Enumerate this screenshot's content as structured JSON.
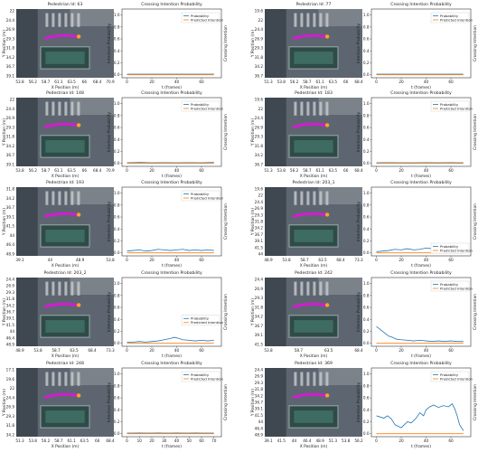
{
  "panels": [
    {
      "map_title": "Pedestrian Id: 63",
      "map_x_ticks": [
        "53.8",
        "56.2",
        "58.7",
        "61.1",
        "63.5",
        "66",
        "68.4",
        "70.9"
      ],
      "map_y_ticks": [
        "22",
        "24.4",
        "26.9",
        "29.3",
        "31.8",
        "34.2",
        "36.7",
        "39.1"
      ],
      "map_xlabel": "X Position (m)",
      "map_ylabel": "Y Position (m)",
      "chart_data": {
        "type": "line",
        "title": "Crossing Intention Probability",
        "xlabel": "t (frames)",
        "ylabel": "Intention Probability",
        "y2label": "Crossing Intention",
        "xlim": [
          -4,
          76
        ],
        "ylim": [
          -0.05,
          1.1
        ],
        "x_ticks": [
          0,
          20,
          40,
          60
        ],
        "y_ticks": [
          0.0,
          0.2,
          0.4,
          0.6,
          0.8,
          1.0
        ],
        "legend": "top-right",
        "series": [
          {
            "name": "Probability",
            "color": "#1f77b4",
            "x": [
              0,
              70
            ],
            "y": [
              0.01,
              0.01
            ]
          },
          {
            "name": "Predicted Intention",
            "color": "#ff7f0e",
            "x": [
              0,
              70
            ],
            "y": [
              0,
              0
            ]
          }
        ]
      }
    },
    {
      "map_title": "Pedestrian Id: 77",
      "map_x_ticks": [
        "51.3",
        "53.8",
        "56.2",
        "58.7",
        "61.1",
        "63.5",
        "66",
        "68.4"
      ],
      "map_y_ticks": [
        "19.6",
        "22",
        "24.4",
        "26.9",
        "29.3",
        "31.8",
        "34.2",
        "36.7"
      ],
      "map_xlabel": "X Position (m)",
      "map_ylabel": "Y Position (m)",
      "chart_data": {
        "type": "line",
        "title": "Crossing Intention Probability",
        "xlabel": "t (frames)",
        "ylabel": "Intention Probability",
        "y2label": "Crossing Intention",
        "xlim": [
          -4,
          76
        ],
        "ylim": [
          -0.05,
          1.1
        ],
        "x_ticks": [
          0,
          20,
          40,
          60
        ],
        "y_ticks": [
          0.0,
          0.2,
          0.4,
          0.6,
          0.8,
          1.0
        ],
        "legend": "top-right",
        "series": [
          {
            "name": "Probability",
            "color": "#1f77b4",
            "x": [
              0,
              70
            ],
            "y": [
              0.01,
              0.01
            ]
          },
          {
            "name": "Predicted Intention",
            "color": "#ff7f0e",
            "x": [
              0,
              70
            ],
            "y": [
              0,
              0
            ]
          }
        ]
      }
    },
    {
      "map_title": "Pedestrian Id: 148",
      "map_x_ticks": [
        "53.8",
        "56.2",
        "58.7",
        "61.1",
        "63.5",
        "66",
        "68.4",
        "70.9"
      ],
      "map_y_ticks": [
        "22",
        "24.4",
        "26.9",
        "29.3",
        "31.8",
        "34.2",
        "36.7",
        "39.1"
      ],
      "map_xlabel": "X Position (m)",
      "map_ylabel": "Y Position (m)",
      "chart_data": {
        "type": "line",
        "title": "Crossing Intention Probability",
        "xlabel": "t (frames)",
        "ylabel": "Intention Probability",
        "y2label": "Crossing Intention",
        "xlim": [
          -4,
          76
        ],
        "ylim": [
          -0.05,
          1.1
        ],
        "x_ticks": [
          0,
          20,
          40,
          60
        ],
        "y_ticks": [
          0.0,
          0.2,
          0.4,
          0.6,
          0.8,
          1.0
        ],
        "legend": "top-right",
        "series": [
          {
            "name": "Probability",
            "color": "#1f77b4",
            "x": [
              0,
              10,
              20,
              30,
              40,
              50,
              60,
              70
            ],
            "y": [
              0.01,
              0.015,
              0.01,
              0.012,
              0.01,
              0.012,
              0.01,
              0.015
            ]
          },
          {
            "name": "Predicted Intention",
            "color": "#ff7f0e",
            "x": [
              0,
              70
            ],
            "y": [
              0,
              0
            ]
          }
        ]
      }
    },
    {
      "map_title": "Pedestrian Id: 183",
      "map_x_ticks": [
        "51.3",
        "53.8",
        "56.2",
        "58.7",
        "61.1",
        "63.5",
        "66",
        "68.4"
      ],
      "map_y_ticks": [
        "19.6",
        "22",
        "24.4",
        "26.9",
        "29.3",
        "31.8",
        "34.2",
        "36.7"
      ],
      "map_xlabel": "X Position (m)",
      "map_ylabel": "Y Position (m)",
      "chart_data": {
        "type": "line",
        "title": "Crossing Intention Probability",
        "xlabel": "t (frames)",
        "ylabel": "Intention Probability",
        "y2label": "Crossing Intention",
        "xlim": [
          -4,
          76
        ],
        "ylim": [
          -0.05,
          1.1
        ],
        "x_ticks": [
          0,
          20,
          40,
          60
        ],
        "y_ticks": [
          0.0,
          0.2,
          0.4,
          0.6,
          0.8,
          1.0
        ],
        "legend": "top-right",
        "series": [
          {
            "name": "Probability",
            "color": "#1f77b4",
            "x": [
              0,
              10,
              20,
              30,
              40,
              50,
              60,
              70
            ],
            "y": [
              0.01,
              0.012,
              0.01,
              0.01,
              0.012,
              0.01,
              0.012,
              0.01
            ]
          },
          {
            "name": "Predicted Intention",
            "color": "#ff7f0e",
            "x": [
              0,
              70
            ],
            "y": [
              0,
              0
            ]
          }
        ]
      }
    },
    {
      "map_title": "Pedestrian Id: 193",
      "map_x_ticks": [
        "39.1",
        "44",
        "48.9",
        "53.8"
      ],
      "map_y_ticks": [
        "31.8",
        "34.2",
        "36.7",
        "39.1",
        "41.5",
        "44",
        "46.4",
        "48.9"
      ],
      "map_xlabel": "X Position (m)",
      "map_ylabel": "Y Position (m)",
      "chart_data": {
        "type": "line",
        "title": "Crossing Intention Probability",
        "xlabel": "t (frames)",
        "ylabel": "Intention Probability",
        "y2label": "Crossing Intention",
        "xlim": [
          -4,
          76
        ],
        "ylim": [
          -0.05,
          1.1
        ],
        "x_ticks": [
          0,
          20,
          40,
          60
        ],
        "y_ticks": [
          0.0,
          0.2,
          0.4,
          0.6,
          0.8,
          1.0
        ],
        "legend": "top-right",
        "series": [
          {
            "name": "Probability",
            "color": "#1f77b4",
            "x": [
              0,
              5,
              10,
              15,
              20,
              25,
              30,
              35,
              40,
              45,
              50,
              55,
              60,
              65,
              70
            ],
            "y": [
              0.03,
              0.04,
              0.05,
              0.03,
              0.04,
              0.06,
              0.05,
              0.04,
              0.05,
              0.06,
              0.04,
              0.05,
              0.04,
              0.05,
              0.04
            ]
          },
          {
            "name": "Predicted Intention",
            "color": "#ff7f0e",
            "x": [
              0,
              70
            ],
            "y": [
              0,
              0
            ]
          }
        ]
      }
    },
    {
      "map_title": "Pedestrian Id: 203_1",
      "map_x_ticks": [
        "48.9",
        "53.8",
        "58.7",
        "63.5",
        "68.4",
        "73.3"
      ],
      "map_y_ticks": [
        "19.6",
        "22",
        "24.4",
        "26.9",
        "29.3",
        "31.8",
        "34.2",
        "36.7",
        "39.1",
        "41.5",
        "44"
      ],
      "map_xlabel": "X Position (m)",
      "map_ylabel": "Y Position (m)",
      "chart_data": {
        "type": "line",
        "title": "Crossing Intention Probability",
        "xlabel": "t (frames)",
        "ylabel": "Intention Probability",
        "y2label": "Crossing Intention",
        "xlim": [
          -4,
          76
        ],
        "ylim": [
          -0.05,
          1.1
        ],
        "x_ticks": [
          0,
          20,
          40,
          60
        ],
        "y_ticks": [
          0.0,
          0.2,
          0.4,
          0.6,
          0.8,
          1.0
        ],
        "legend": "bottom-right",
        "series": [
          {
            "name": "Probability",
            "color": "#1f77b4",
            "x": [
              0,
              5,
              10,
              15,
              20,
              25,
              30,
              35,
              40,
              45,
              50,
              55,
              60,
              65,
              70
            ],
            "y": [
              0.02,
              0.03,
              0.04,
              0.06,
              0.05,
              0.07,
              0.05,
              0.06,
              0.08,
              0.07,
              0.06,
              0.09,
              0.07,
              0.06,
              0.07
            ]
          },
          {
            "name": "Predicted Intention",
            "color": "#ff7f0e",
            "x": [
              0,
              70
            ],
            "y": [
              0,
              0
            ]
          }
        ]
      }
    },
    {
      "map_title": "Pedestrian Id: 203_2",
      "map_x_ticks": [
        "48.9",
        "53.8",
        "58.7",
        "63.5",
        "68.4",
        "73.3"
      ],
      "map_y_ticks": [
        "24.4",
        "26.9",
        "29.3",
        "31.8",
        "34.2",
        "36.7",
        "39.1",
        "41.5",
        "44",
        "46.4",
        "48.9"
      ],
      "map_xlabel": "X Position (m)",
      "map_ylabel": "Y Position (m)",
      "chart_data": {
        "type": "line",
        "title": "Crossing Intention Probability",
        "xlabel": "t (frames)",
        "ylabel": "Intention Probability",
        "y2label": "Crossing Intention",
        "xlim": [
          -4,
          76
        ],
        "ylim": [
          -0.05,
          1.1
        ],
        "x_ticks": [
          0,
          20,
          40,
          60
        ],
        "y_ticks": [
          0.0,
          0.2,
          0.4,
          0.6,
          0.8,
          1.0
        ],
        "legend": "center-right",
        "series": [
          {
            "name": "Probability",
            "color": "#1f77b4",
            "x": [
              0,
              5,
              10,
              15,
              20,
              25,
              30,
              35,
              38,
              42,
              45,
              50,
              55,
              60,
              65,
              70
            ],
            "y": [
              0.02,
              0.02,
              0.03,
              0.02,
              0.03,
              0.04,
              0.06,
              0.08,
              0.1,
              0.08,
              0.06,
              0.05,
              0.04,
              0.05,
              0.04,
              0.05
            ]
          },
          {
            "name": "Predicted Intention",
            "color": "#ff7f0e",
            "x": [
              0,
              70
            ],
            "y": [
              0,
              0
            ]
          }
        ]
      }
    },
    {
      "map_title": "Pedestrian Id: 242",
      "map_x_ticks": [
        "53.8",
        "58.7",
        "63.5",
        "68.4"
      ],
      "map_y_ticks": [
        "24.4",
        "26.9",
        "29.3",
        "31.8",
        "34.2",
        "36.7",
        "39.1",
        "41.5"
      ],
      "map_xlabel": "X Position (m)",
      "map_ylabel": "Y Position (m)",
      "chart_data": {
        "type": "line",
        "title": "Crossing Intention Probability",
        "xlabel": "t (frames)",
        "ylabel": "Intention Probability",
        "y2label": "Crossing Intention",
        "xlim": [
          -4,
          76
        ],
        "ylim": [
          -0.05,
          1.1
        ],
        "x_ticks": [
          0,
          20,
          40,
          60
        ],
        "y_ticks": [
          0.0,
          0.2,
          0.4,
          0.6,
          0.8,
          1.0
        ],
        "legend": "top-right",
        "series": [
          {
            "name": "Probability",
            "color": "#1f77b4",
            "x": [
              0,
              2,
              5,
              8,
              10,
              13,
              16,
              20,
              25,
              30,
              35,
              40,
              45,
              50,
              55,
              60,
              65,
              70
            ],
            "y": [
              0.28,
              0.25,
              0.2,
              0.15,
              0.12,
              0.1,
              0.07,
              0.06,
              0.05,
              0.04,
              0.05,
              0.04,
              0.03,
              0.04,
              0.03,
              0.04,
              0.03,
              0.03
            ]
          },
          {
            "name": "Predicted Intention",
            "color": "#ff7f0e",
            "x": [
              0,
              70
            ],
            "y": [
              0,
              0
            ]
          }
        ]
      }
    },
    {
      "map_title": "Pedestrian Id: 248",
      "map_x_ticks": [
        "51.3",
        "53.8",
        "56.2",
        "58.7",
        "61.1",
        "63.5",
        "66",
        "68.4"
      ],
      "map_y_ticks": [
        "17.1",
        "19.6",
        "22",
        "24.4",
        "26.9",
        "29.3",
        "31.8",
        "34.2"
      ],
      "map_xlabel": "X Position (m)",
      "map_ylabel": "Y Position (m)",
      "chart_data": {
        "type": "line",
        "title": "Crossing Intention Probability",
        "xlabel": "t (frames)",
        "ylabel": "Intention Probability",
        "y2label": "Crossing Intention",
        "xlim": [
          -4,
          76
        ],
        "ylim": [
          -0.05,
          1.1
        ],
        "x_ticks": [
          0,
          10,
          20,
          30,
          40,
          50,
          60,
          70
        ],
        "y_ticks": [
          0.0,
          0.2,
          0.4,
          0.6,
          0.8,
          1.0
        ],
        "legend": "top-right",
        "series": [
          {
            "name": "Probability",
            "color": "#1f77b4",
            "x": [
              0,
              5,
              10,
              15,
              20,
              25,
              30,
              35,
              40,
              45,
              50,
              55,
              60,
              65,
              70
            ],
            "y": [
              0.01,
              0.01,
              0.012,
              0.01,
              0.01,
              0.012,
              0.01,
              0.01,
              0.012,
              0.01,
              0.01,
              0.012,
              0.01,
              0.01,
              0.01
            ]
          },
          {
            "name": "Predicted Intention",
            "color": "#ff7f0e",
            "x": [
              0,
              70
            ],
            "y": [
              0,
              0
            ]
          }
        ]
      }
    },
    {
      "map_title": "Pedestrian Id: 369",
      "map_x_ticks": [
        "39.1",
        "41.5",
        "44",
        "46.4",
        "48.9",
        "51.3",
        "53.8",
        "56.2"
      ],
      "map_y_ticks": [
        "24.4",
        "26.9",
        "29.3",
        "31.8",
        "34.2",
        "36.7",
        "39.1",
        "41.5",
        "44",
        "46.4",
        "48.9"
      ],
      "map_xlabel": "X Position (m)",
      "map_ylabel": "Y Position (m)",
      "chart_data": {
        "type": "line",
        "title": "Crossing Intention Probability",
        "xlabel": "t (frames)",
        "ylabel": "Intention Probability",
        "y2label": "Crossing Intention",
        "xlim": [
          -4,
          76
        ],
        "ylim": [
          -0.05,
          1.1
        ],
        "x_ticks": [
          0,
          20,
          40,
          60
        ],
        "y_ticks": [
          0.0,
          0.2,
          0.4,
          0.6,
          0.8,
          1.0
        ],
        "legend": "top-right",
        "series": [
          {
            "name": "Probability",
            "color": "#1f77b4",
            "x": [
              0,
              3,
              6,
              9,
              12,
              15,
              18,
              20,
              22,
              25,
              28,
              30,
              32,
              35,
              38,
              40,
              43,
              46,
              50,
              54,
              58,
              61,
              63,
              65,
              67,
              70
            ],
            "y": [
              0.3,
              0.28,
              0.26,
              0.3,
              0.25,
              0.15,
              0.12,
              0.1,
              0.14,
              0.2,
              0.18,
              0.22,
              0.26,
              0.35,
              0.3,
              0.4,
              0.45,
              0.48,
              0.44,
              0.47,
              0.45,
              0.5,
              0.42,
              0.3,
              0.15,
              0.05
            ]
          },
          {
            "name": "Predicted Intention",
            "color": "#ff7f0e",
            "x": [
              0,
              70
            ],
            "y": [
              0,
              0
            ]
          }
        ]
      }
    }
  ]
}
